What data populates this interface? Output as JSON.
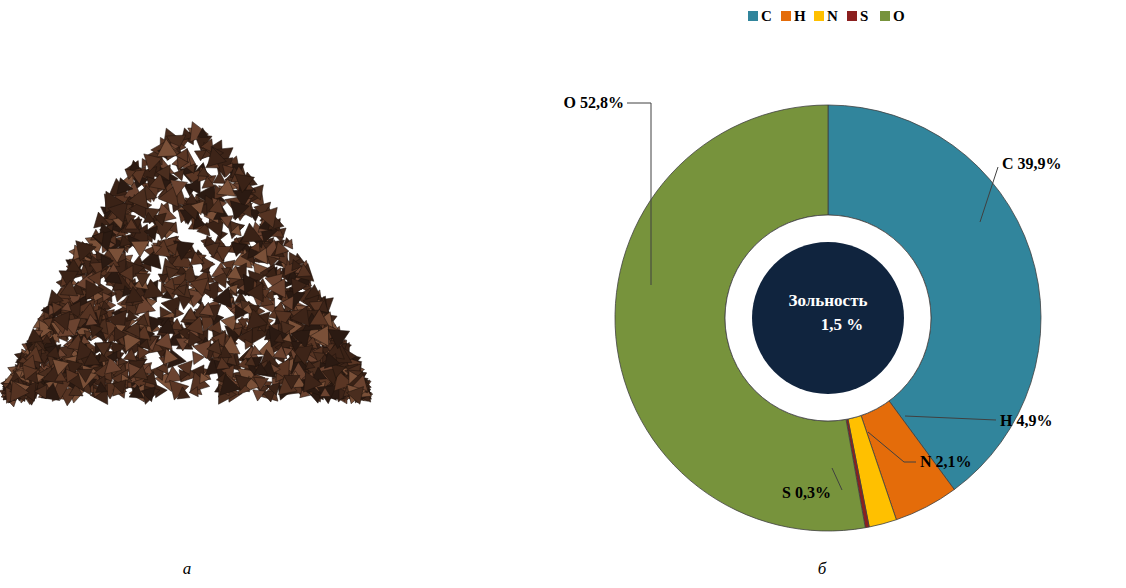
{
  "chart_data": {
    "type": "pie",
    "categories": [
      "C",
      "H",
      "N",
      "S",
      "O"
    ],
    "values": [
      39.9,
      4.9,
      2.1,
      0.3,
      52.8
    ],
    "value_labels": [
      "C 39,9%",
      "H 4,9%",
      "N 2,1%",
      "S 0,3%",
      "O 52,8%"
    ],
    "colors": [
      "#31859c",
      "#e46c0a",
      "#ffc000",
      "#8b2020",
      "#77933c"
    ],
    "legend": "top",
    "data_labels": true,
    "annotations": [
      "Зольность",
      "1,5 %"
    ],
    "panel_labels": [
      "а",
      "б"
    ]
  }
}
